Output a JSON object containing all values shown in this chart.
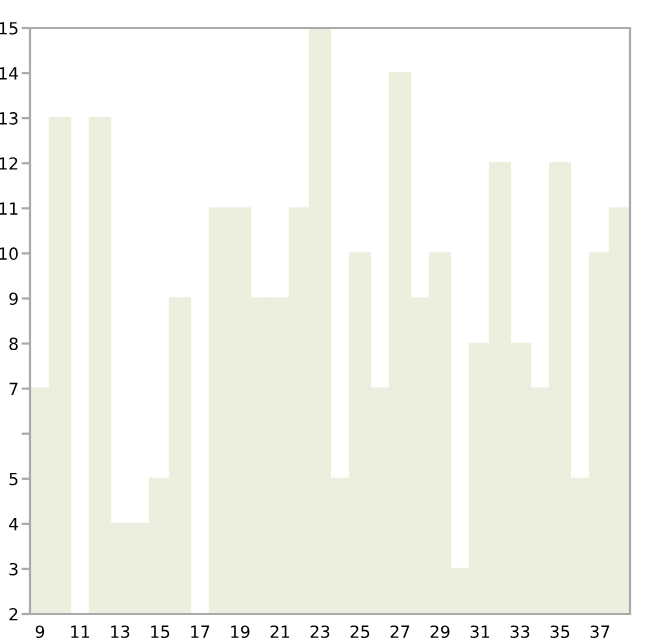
{
  "chart_data": {
    "type": "bar",
    "categories": [
      "9",
      null,
      "11",
      null,
      "13",
      null,
      "15",
      null,
      "17",
      null,
      "19",
      null,
      "21",
      null,
      "23",
      null,
      "25",
      null,
      "27",
      null,
      "29",
      null,
      "31",
      null,
      "33",
      null,
      "35",
      null,
      "37",
      null
    ],
    "values": [
      7,
      13,
      2,
      13,
      4,
      4,
      5,
      9,
      2,
      11,
      11,
      9,
      9,
      11,
      15,
      5,
      10,
      7,
      14,
      9,
      10,
      3,
      8,
      12,
      8,
      7,
      12,
      5,
      10,
      11
    ],
    "color": "#eeeedf",
    "ylim": [
      2,
      15
    ],
    "yticks": [
      2,
      3,
      4,
      5,
      {
        "value": 6,
        "label": null
      },
      7,
      8,
      9,
      10,
      11,
      12,
      13,
      14,
      15
    ],
    "grid": false
  }
}
